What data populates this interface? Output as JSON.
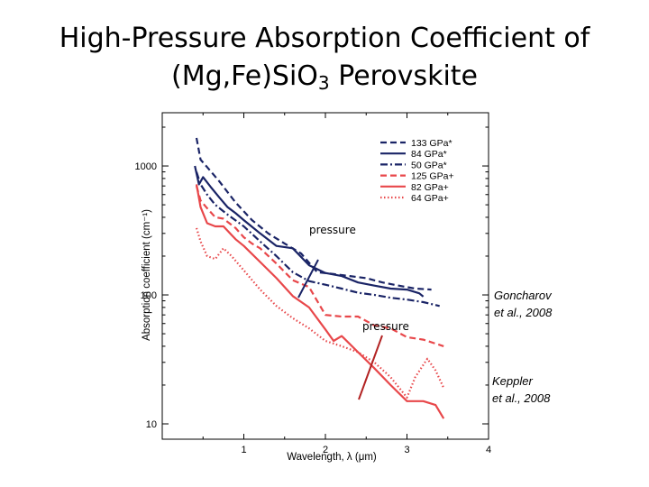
{
  "slide": {
    "title_line1": "High-Pressure Absorption Coefficient of",
    "title_line2_pre": "(Mg,Fe)SiO",
    "title_line2_sub": "3",
    "title_line2_post": " Perovskite"
  },
  "annotations": {
    "goncharov": [
      "Goncharov",
      "et al., 2008"
    ],
    "keppler": [
      "Keppler",
      "et al., 2008"
    ],
    "pressure_upper": "pressure",
    "pressure_lower": "pressure"
  },
  "colors": {
    "navy": "#1a2466",
    "red": "#e8474a"
  },
  "chart_data": {
    "type": "line",
    "xlabel": "Wavelength, λ (μm)",
    "ylabel": "Absorption coefficient (cm⁻¹)",
    "xlim": [
      0,
      4
    ],
    "ylim": [
      10,
      2000
    ],
    "y_scale": "log",
    "x_ticks": [
      "1",
      "2",
      "3",
      "4"
    ],
    "y_ticks": [
      "10",
      "100",
      "1000"
    ],
    "legend_position": "top-right",
    "series": [
      {
        "name": "133 GPa*",
        "color": "#1a2466",
        "dash": "dashed",
        "x": [
          0.42,
          0.47,
          0.55,
          0.7,
          0.9,
          1.1,
          1.3,
          1.5,
          1.7,
          1.9,
          2.1,
          2.3,
          2.5,
          2.7,
          2.9,
          3.1,
          3.3
        ],
        "y": [
          1650,
          1120,
          980,
          760,
          520,
          380,
          300,
          250,
          210,
          150,
          145,
          140,
          135,
          125,
          118,
          112,
          110
        ]
      },
      {
        "name": "84 GPa*",
        "color": "#1a2466",
        "dash": "solid",
        "x": [
          0.4,
          0.45,
          0.5,
          0.6,
          0.7,
          0.8,
          0.9,
          1.0,
          1.2,
          1.4,
          1.6,
          1.8,
          2.0,
          2.2,
          2.4,
          2.6,
          2.8,
          3.0,
          3.15,
          3.2
        ],
        "y": [
          1000,
          720,
          820,
          680,
          570,
          480,
          430,
          380,
          300,
          240,
          230,
          170,
          148,
          140,
          125,
          118,
          112,
          110,
          103,
          97
        ]
      },
      {
        "name": "50 GPa*",
        "color": "#1a2466",
        "dash": "dashdot",
        "x": [
          0.42,
          0.47,
          0.55,
          0.65,
          0.8,
          1.0,
          1.2,
          1.4,
          1.6,
          1.8,
          2.0,
          2.2,
          2.4,
          2.6,
          2.8,
          3.0,
          3.2,
          3.4
        ],
        "y": [
          900,
          720,
          600,
          500,
          420,
          340,
          260,
          200,
          150,
          128,
          120,
          112,
          104,
          100,
          95,
          92,
          88,
          82
        ]
      },
      {
        "name": "125 GPa+",
        "color": "#e8474a",
        "dash": "dashed",
        "x": [
          0.42,
          0.47,
          0.55,
          0.65,
          0.75,
          0.9,
          1.0,
          1.1,
          1.2,
          1.4,
          1.6,
          1.8,
          2.0,
          2.2,
          2.4,
          2.6,
          2.8,
          3.0,
          3.2,
          3.45
        ],
        "y": [
          700,
          540,
          470,
          400,
          390,
          330,
          280,
          250,
          230,
          175,
          130,
          115,
          70,
          68,
          68,
          58,
          55,
          47,
          45,
          40
        ]
      },
      {
        "name": "82 GPa+",
        "color": "#e8474a",
        "dash": "solid",
        "x": [
          0.42,
          0.47,
          0.55,
          0.65,
          0.75,
          0.9,
          1.0,
          1.2,
          1.4,
          1.6,
          1.8,
          2.0,
          2.1,
          2.2,
          2.4,
          2.6,
          2.8,
          3.0,
          3.2,
          3.35,
          3.45
        ],
        "y": [
          720,
          480,
          360,
          340,
          340,
          270,
          240,
          180,
          135,
          98,
          80,
          54,
          44,
          48,
          36,
          27,
          20,
          15,
          15,
          14,
          11
        ]
      },
      {
        "name": "64 GPa+",
        "color": "#e8474a",
        "dash": "dotted",
        "x": [
          0.42,
          0.47,
          0.55,
          0.65,
          0.75,
          0.85,
          1.0,
          1.2,
          1.4,
          1.6,
          1.8,
          2.0,
          2.2,
          2.4,
          2.6,
          2.8,
          3.0,
          3.1,
          3.25,
          3.35,
          3.45
        ],
        "y": [
          330,
          260,
          200,
          190,
          230,
          200,
          155,
          110,
          82,
          66,
          55,
          44,
          40,
          36,
          30,
          23,
          16,
          23,
          32,
          26,
          19
        ]
      }
    ]
  }
}
